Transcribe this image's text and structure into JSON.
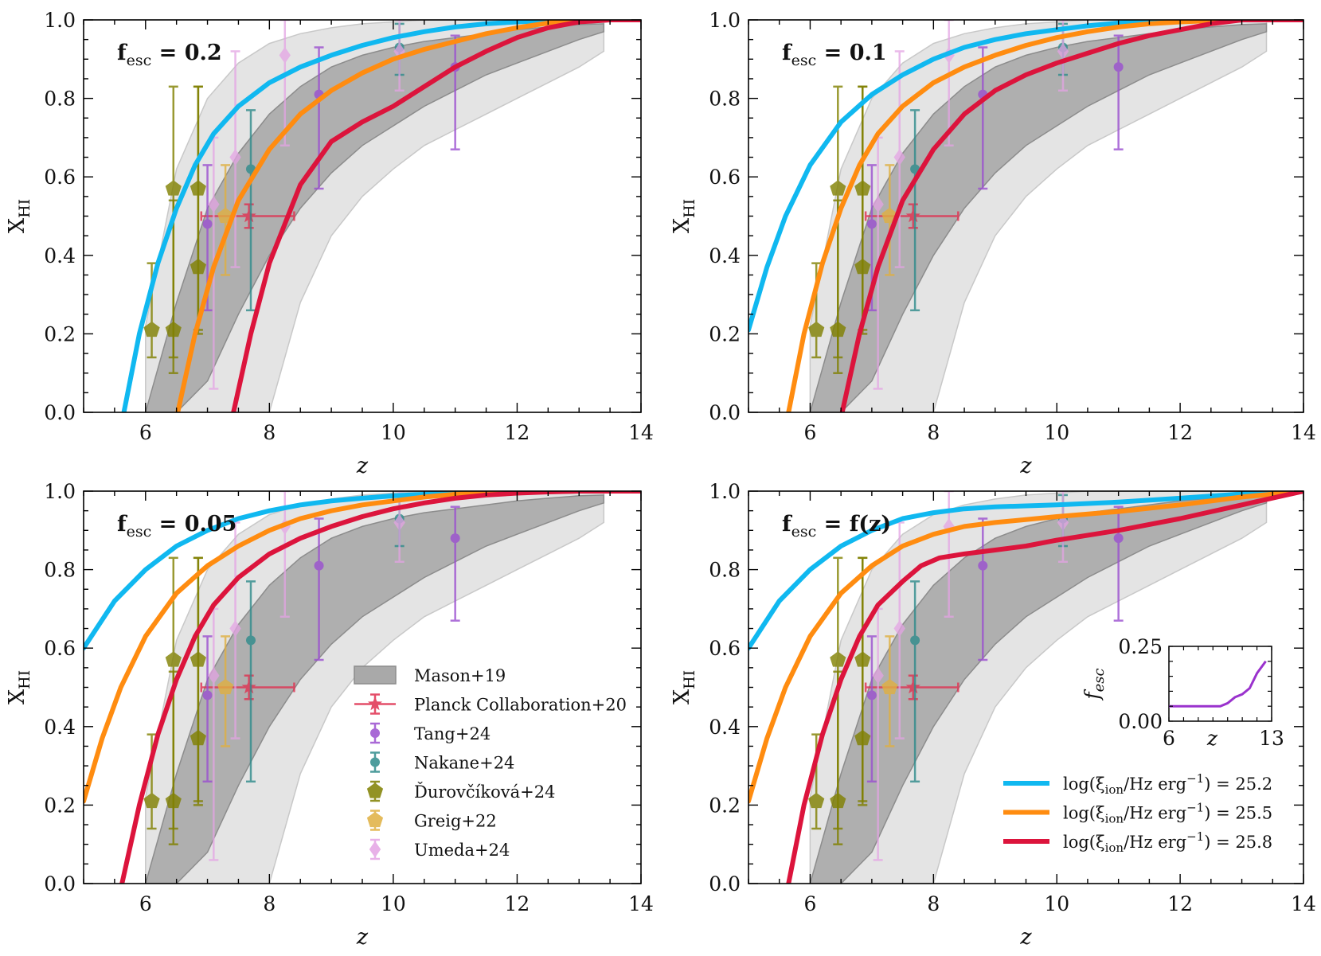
{
  "figure": {
    "xlabel": "z",
    "ylabel_main": "X",
    "ylabel_sub": "HI",
    "colors": {
      "band_outer": "#e4e4e4",
      "band_inner": "#a9a9a9",
      "cyan": "#10b8f0",
      "orange": "#ff8c10",
      "crimson": "#dc143c",
      "tang": "#9b4fd0",
      "nakane": "#2e8b8b",
      "durov": "#808000",
      "greig": "#e0b040",
      "umeda": "#e4a4e4",
      "planck": "#e03050",
      "inset_line": "#9a32cd"
    }
  },
  "chart_data": [
    {
      "type": "line",
      "panel_label": "f_esc = 0.2",
      "label_main": "f",
      "label_sub": "esc",
      "label_rest": " = 0.2",
      "xlim": [
        5,
        14
      ],
      "ylim": [
        0.0,
        1.0
      ],
      "xticks": [
        "6",
        "8",
        "10",
        "12",
        "14"
      ],
      "yticks": [
        "0.0",
        "0.2",
        "0.4",
        "0.6",
        "0.8",
        "1.0"
      ],
      "xlabel": "z",
      "ylabel": "X_HI",
      "series": [
        {
          "name": "log(ξion/Hz erg^-1) = 25.2",
          "color": "cyan",
          "x": [
            5.65,
            5.9,
            6.2,
            6.5,
            6.8,
            7.1,
            7.5,
            8.0,
            8.5,
            9.0,
            9.5,
            10.0,
            10.5,
            11.0,
            11.5,
            12.0,
            12.5,
            13.0,
            14.0
          ],
          "y": [
            0.0,
            0.2,
            0.38,
            0.52,
            0.63,
            0.71,
            0.78,
            0.84,
            0.88,
            0.91,
            0.935,
            0.955,
            0.97,
            0.982,
            0.99,
            0.995,
            0.998,
            1.0,
            1.0
          ]
        },
        {
          "name": "log(ξion/Hz erg^-1) = 25.5",
          "color": "orange",
          "x": [
            6.52,
            6.8,
            7.1,
            7.5,
            8.0,
            8.5,
            9.0,
            9.5,
            10.0,
            10.5,
            11.0,
            11.5,
            12.0,
            12.5,
            13.0,
            14.0
          ],
          "y": [
            0.0,
            0.2,
            0.37,
            0.54,
            0.67,
            0.76,
            0.82,
            0.865,
            0.9,
            0.925,
            0.945,
            0.965,
            0.98,
            0.992,
            1.0,
            1.0
          ]
        },
        {
          "name": "log(ξion/Hz erg^-1) = 25.8",
          "color": "crimson",
          "x": [
            7.42,
            7.7,
            8.0,
            8.5,
            9.0,
            9.5,
            10.0,
            10.5,
            11.0,
            11.5,
            12.0,
            12.5,
            13.0,
            13.5,
            14.0
          ],
          "y": [
            0.0,
            0.2,
            0.38,
            0.58,
            0.69,
            0.74,
            0.78,
            0.83,
            0.88,
            0.92,
            0.955,
            0.98,
            0.995,
            1.0,
            1.0
          ]
        }
      ]
    },
    {
      "type": "line",
      "panel_label": "f_esc = 0.1",
      "label_main": "f",
      "label_sub": "esc",
      "label_rest": " = 0.1",
      "xlim": [
        5,
        14
      ],
      "ylim": [
        0.0,
        1.0
      ],
      "xticks": [
        "6",
        "8",
        "10",
        "12",
        "14"
      ],
      "yticks": [
        "0.0",
        "0.2",
        "0.4",
        "0.6",
        "0.8",
        "1.0"
      ],
      "xlabel": "z",
      "ylabel": "X_HI",
      "series": [
        {
          "name": "log(ξion/Hz erg^-1) = 25.2",
          "color": "cyan",
          "x": [
            5.0,
            5.3,
            5.6,
            6.0,
            6.5,
            7.0,
            7.5,
            8.0,
            8.5,
            9.0,
            9.5,
            10.0,
            10.5,
            11.0,
            11.5,
            12.0,
            12.5,
            13.0,
            14.0
          ],
          "y": [
            0.21,
            0.37,
            0.5,
            0.63,
            0.74,
            0.81,
            0.86,
            0.9,
            0.93,
            0.95,
            0.965,
            0.975,
            0.985,
            0.992,
            0.996,
            0.999,
            1.0,
            1.0,
            1.0
          ]
        },
        {
          "name": "log(ξion/Hz erg^-1) = 25.5",
          "color": "orange",
          "x": [
            5.65,
            5.9,
            6.2,
            6.5,
            6.8,
            7.1,
            7.5,
            8.0,
            8.5,
            9.0,
            9.5,
            10.0,
            10.5,
            11.0,
            11.5,
            12.0,
            12.5,
            13.0,
            14.0
          ],
          "y": [
            0.0,
            0.2,
            0.38,
            0.52,
            0.63,
            0.71,
            0.78,
            0.84,
            0.88,
            0.91,
            0.935,
            0.955,
            0.97,
            0.982,
            0.99,
            0.995,
            0.998,
            1.0,
            1.0
          ]
        },
        {
          "name": "log(ξion/Hz erg^-1) = 25.8",
          "color": "crimson",
          "x": [
            6.52,
            6.8,
            7.1,
            7.5,
            8.0,
            8.5,
            9.0,
            9.5,
            10.0,
            10.5,
            11.0,
            11.5,
            12.0,
            12.5,
            13.0,
            14.0
          ],
          "y": [
            0.0,
            0.2,
            0.37,
            0.54,
            0.67,
            0.76,
            0.82,
            0.86,
            0.89,
            0.915,
            0.94,
            0.96,
            0.975,
            0.99,
            1.0,
            1.0
          ]
        }
      ]
    },
    {
      "type": "line",
      "panel_label": "f_esc = 0.05",
      "label_main": "f",
      "label_sub": "esc",
      "label_rest": " = 0.05",
      "xlim": [
        5,
        14
      ],
      "ylim": [
        0.0,
        1.0
      ],
      "xticks": [
        "6",
        "8",
        "10",
        "12",
        "14"
      ],
      "yticks": [
        "0.0",
        "0.2",
        "0.4",
        "0.6",
        "0.8",
        "1.0"
      ],
      "xlabel": "z",
      "ylabel": "X_HI",
      "series": [
        {
          "name": "log(ξion/Hz erg^-1) = 25.2",
          "color": "cyan",
          "x": [
            5.0,
            5.5,
            6.0,
            6.5,
            7.0,
            7.5,
            8.0,
            8.5,
            9.0,
            9.5,
            10.0,
            10.5,
            11.0,
            12.0,
            13.0,
            14.0
          ],
          "y": [
            0.6,
            0.72,
            0.8,
            0.86,
            0.9,
            0.93,
            0.95,
            0.965,
            0.975,
            0.982,
            0.988,
            0.992,
            0.995,
            0.998,
            1.0,
            1.0
          ]
        },
        {
          "name": "log(ξion/Hz erg^-1) = 25.5",
          "color": "orange",
          "x": [
            5.0,
            5.3,
            5.6,
            6.0,
            6.5,
            7.0,
            7.5,
            8.0,
            8.5,
            9.0,
            9.5,
            10.0,
            10.5,
            11.0,
            12.0,
            13.0,
            14.0
          ],
          "y": [
            0.21,
            0.37,
            0.5,
            0.63,
            0.74,
            0.81,
            0.86,
            0.9,
            0.93,
            0.95,
            0.965,
            0.975,
            0.985,
            0.992,
            0.998,
            1.0,
            1.0
          ]
        },
        {
          "name": "log(ξion/Hz erg^-1) = 25.8",
          "color": "crimson",
          "x": [
            5.62,
            5.9,
            6.2,
            6.5,
            6.8,
            7.1,
            7.5,
            8.0,
            8.5,
            9.0,
            9.5,
            10.0,
            10.5,
            11.0,
            11.5,
            12.0,
            12.5,
            13.0,
            14.0
          ],
          "y": [
            0.0,
            0.2,
            0.38,
            0.52,
            0.63,
            0.71,
            0.78,
            0.84,
            0.88,
            0.91,
            0.935,
            0.955,
            0.97,
            0.982,
            0.99,
            0.995,
            0.998,
            1.0,
            1.0
          ]
        }
      ]
    },
    {
      "type": "line",
      "panel_label": "f_esc = f(z)",
      "label_main": "f",
      "label_sub": "esc",
      "label_rest": " = f(z)",
      "xlim": [
        5,
        14
      ],
      "ylim": [
        0.0,
        1.0
      ],
      "xticks": [
        "6",
        "8",
        "10",
        "12",
        "14"
      ],
      "yticks": [
        "0.0",
        "0.2",
        "0.4",
        "0.6",
        "0.8",
        "1.0"
      ],
      "xlabel": "z",
      "ylabel": "X_HI",
      "series": [
        {
          "name": "log(ξion/Hz erg^-1) = 25.2",
          "color": "cyan",
          "x": [
            5.0,
            5.5,
            6.0,
            6.5,
            7.0,
            7.5,
            8.0,
            8.5,
            9.0,
            10.0,
            11.0,
            12.0,
            13.0,
            14.0
          ],
          "y": [
            0.6,
            0.72,
            0.8,
            0.86,
            0.9,
            0.93,
            0.945,
            0.955,
            0.96,
            0.965,
            0.972,
            0.982,
            0.993,
            1.0
          ]
        },
        {
          "name": "log(ξion/Hz erg^-1) = 25.5",
          "color": "orange",
          "x": [
            5.0,
            5.3,
            5.6,
            6.0,
            6.5,
            7.0,
            7.5,
            8.0,
            8.5,
            9.0,
            10.0,
            11.0,
            12.0,
            13.0,
            14.0
          ],
          "y": [
            0.21,
            0.37,
            0.5,
            0.63,
            0.74,
            0.81,
            0.86,
            0.89,
            0.91,
            0.92,
            0.935,
            0.948,
            0.965,
            0.985,
            1.0
          ]
        },
        {
          "name": "log(ξion/Hz erg^-1) = 25.8",
          "color": "crimson",
          "x": [
            5.65,
            5.9,
            6.2,
            6.5,
            6.8,
            7.1,
            7.5,
            7.8,
            8.1,
            8.5,
            9.0,
            9.5,
            10.0,
            11.0,
            12.0,
            13.0,
            14.0
          ],
          "y": [
            0.0,
            0.2,
            0.38,
            0.52,
            0.63,
            0.71,
            0.77,
            0.81,
            0.83,
            0.84,
            0.85,
            0.86,
            0.875,
            0.9,
            0.93,
            0.965,
            1.0
          ]
        }
      ],
      "inset": {
        "type": "line",
        "xlabel": "z",
        "ylabel": "f_esc",
        "ylabel_main": "f",
        "ylabel_sub": "esc",
        "xlim": [
          6,
          13
        ],
        "ylim": [
          0.0,
          0.25
        ],
        "xticks": [
          "6",
          "13"
        ],
        "yticks": [
          "0.00",
          "0.25"
        ],
        "x": [
          6,
          6.5,
          7.0,
          7.5,
          8.0,
          8.5,
          9.0,
          9.5,
          10.0,
          10.5,
          11.0,
          11.5,
          12.0,
          12.6
        ],
        "y": [
          0.05,
          0.05,
          0.05,
          0.05,
          0.05,
          0.05,
          0.05,
          0.05,
          0.06,
          0.08,
          0.09,
          0.11,
          0.16,
          0.2
        ]
      }
    }
  ],
  "band": {
    "name": "Mason+19",
    "z": [
      6.0,
      6.5,
      7.0,
      7.5,
      8.0,
      8.5,
      9.0,
      9.5,
      10.0,
      10.5,
      11.0,
      11.5,
      12.0,
      12.5,
      13.0,
      13.4
    ],
    "outer_lo": [
      0.0,
      0.0,
      0.0,
      0.0,
      0.0,
      0.28,
      0.45,
      0.55,
      0.62,
      0.68,
      0.72,
      0.76,
      0.8,
      0.84,
      0.88,
      0.92
    ],
    "inner_lo": [
      0.0,
      0.0,
      0.08,
      0.25,
      0.4,
      0.52,
      0.61,
      0.68,
      0.73,
      0.78,
      0.82,
      0.86,
      0.89,
      0.92,
      0.95,
      0.97
    ],
    "inner_hi": [
      0.0,
      0.28,
      0.52,
      0.66,
      0.76,
      0.83,
      0.88,
      0.91,
      0.93,
      0.945,
      0.955,
      0.965,
      0.975,
      0.982,
      0.988,
      0.99
    ],
    "outer_hi": [
      0.22,
      0.62,
      0.8,
      0.89,
      0.94,
      0.965,
      0.98,
      0.99,
      0.995,
      1.0,
      1.0,
      1.0,
      1.0,
      1.0,
      1.0,
      1.0
    ]
  },
  "observations": [
    {
      "name": "Planck Collaboration+20",
      "marker": "star",
      "color": "planck",
      "points": [
        {
          "x": 7.67,
          "y": 0.5,
          "ylo": 0.47,
          "yhi": 0.53,
          "xlo": 6.9,
          "xhi": 8.4
        }
      ]
    },
    {
      "name": "Tang+24",
      "marker": "circle",
      "color": "tang",
      "points": [
        {
          "x": 7.0,
          "y": 0.48,
          "ylo": 0.26,
          "yhi": 0.63
        },
        {
          "x": 8.8,
          "y": 0.81,
          "ylo": 0.57,
          "yhi": 0.93
        },
        {
          "x": 11.0,
          "y": 0.88,
          "ylo": 0.67,
          "yhi": 0.96
        }
      ]
    },
    {
      "name": "Nakane+24",
      "marker": "circle",
      "color": "nakane",
      "points": [
        {
          "x": 7.7,
          "y": 0.62,
          "ylo": 0.26,
          "yhi": 0.77
        },
        {
          "x": 10.1,
          "y": 0.93,
          "ylo": 0.86,
          "yhi": 0.99
        }
      ]
    },
    {
      "name": "Ďurovčíková+24",
      "marker": "pentagon",
      "color": "durov",
      "points": [
        {
          "x": 6.1,
          "y": 0.21,
          "ylo": 0.14,
          "yhi": 0.38
        },
        {
          "x": 6.45,
          "y": 0.21,
          "ylo": 0.1,
          "yhi": 0.54
        },
        {
          "x": 6.45,
          "y": 0.57,
          "ylo": 0.14,
          "yhi": 0.83
        },
        {
          "x": 6.85,
          "y": 0.37,
          "ylo": 0.2,
          "yhi": 0.83
        },
        {
          "x": 6.85,
          "y": 0.57,
          "ylo": 0.21,
          "yhi": 0.83
        }
      ]
    },
    {
      "name": "Greig+22",
      "marker": "pentagon",
      "color": "greig",
      "points": [
        {
          "x": 7.29,
          "y": 0.5,
          "ylo": 0.35,
          "yhi": 0.63
        }
      ]
    },
    {
      "name": "Umeda+24",
      "marker": "diamond",
      "color": "umeda",
      "points": [
        {
          "x": 7.1,
          "y": 0.53,
          "ylo": 0.06,
          "yhi": 0.7
        },
        {
          "x": 7.45,
          "y": 0.65,
          "ylo": 0.37,
          "yhi": 0.92
        },
        {
          "x": 8.25,
          "y": 0.91,
          "ylo": 0.68,
          "yhi": 1.0
        },
        {
          "x": 10.1,
          "y": 0.92,
          "ylo": 0.82,
          "yhi": 1.0
        }
      ]
    }
  ],
  "legend_obs": {
    "entries": [
      "Mason+19",
      "Planck Collaboration+20",
      "Tang+24",
      "Nakane+24",
      "Ďurovčíková+24",
      "Greig+22",
      "Umeda+24"
    ]
  },
  "legend_lines": {
    "entries": [
      {
        "color": "cyan",
        "prefix": "log(ξ",
        "sub": "ion",
        "mid": "/Hz erg",
        "sup": "−1",
        "suffix": ") = 25.2"
      },
      {
        "color": "orange",
        "prefix": "log(ξ",
        "sub": "ion",
        "mid": "/Hz erg",
        "sup": "−1",
        "suffix": ") = 25.5"
      },
      {
        "color": "crimson",
        "prefix": "log(ξ",
        "sub": "ion",
        "mid": "/Hz erg",
        "sup": "−1",
        "suffix": ") = 25.8"
      }
    ]
  }
}
